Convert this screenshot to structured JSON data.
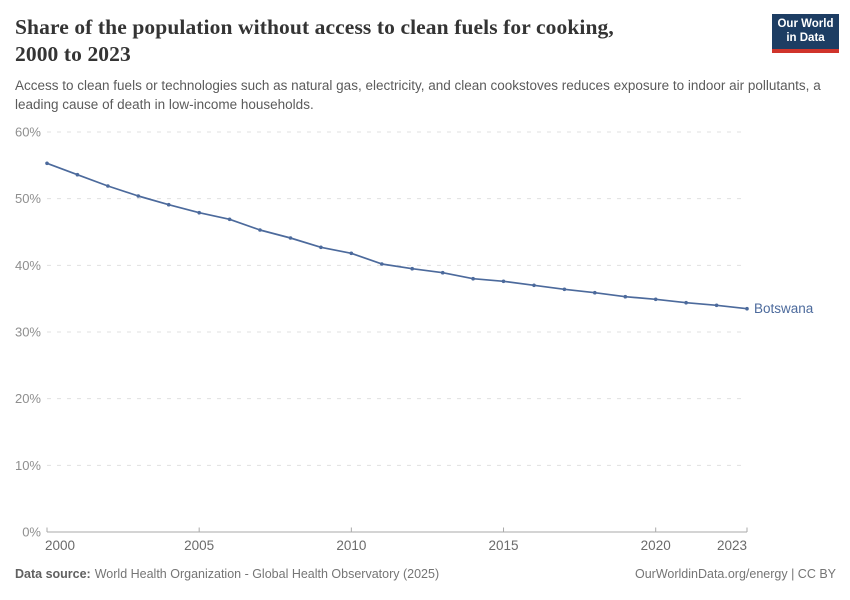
{
  "header": {
    "title_line1": "Share of the population without access to clean fuels for cooking,",
    "title_line2": "2000 to 2023",
    "subtitle": "Access to clean fuels or technologies such as natural gas, electricity, and clean cookstoves reduces exposure to indoor air pollutants, a leading cause of death in low-income households.",
    "logo": {
      "line1": "Our World",
      "line2": "in Data",
      "bg_color": "#1d3d63",
      "accent_color": "#d0342b"
    }
  },
  "chart_data": {
    "type": "line",
    "title": "Share of the population without access to clean fuels for cooking, 2000 to 2023",
    "x": [
      2000,
      2001,
      2002,
      2003,
      2004,
      2005,
      2006,
      2007,
      2008,
      2009,
      2010,
      2011,
      2012,
      2013,
      2014,
      2015,
      2016,
      2017,
      2018,
      2019,
      2020,
      2021,
      2022,
      2023
    ],
    "series": [
      {
        "name": "Botswana",
        "color": "#4c6a9c",
        "values": [
          55.3,
          53.6,
          51.9,
          50.4,
          49.1,
          47.9,
          46.9,
          45.3,
          44.1,
          42.7,
          41.8,
          40.2,
          39.5,
          38.9,
          38.0,
          37.6,
          37.0,
          36.4,
          35.9,
          35.3,
          34.9,
          34.4,
          34.0,
          33.5
        ]
      }
    ],
    "xlabel": "",
    "ylabel": "",
    "ylim": [
      0,
      60
    ],
    "yticks": [
      0,
      10,
      20,
      30,
      40,
      50,
      60
    ],
    "ytick_suffix": "%",
    "xticks": [
      2000,
      2005,
      2010,
      2015,
      2020,
      2023
    ],
    "grid": "horizontal-dashed",
    "legend_position": "end-of-line-label",
    "colors": {
      "gridline": "#e0e0e0",
      "axis_line": "#a9a9a9",
      "y_tick_label": "#8f8f8f",
      "x_tick_label": "#6b6b6b"
    }
  },
  "footer": {
    "source_label": "Data source:",
    "source_text": "World Health Organization - Global Health Observatory (2025)",
    "credit": "OurWorldinData.org/energy | CC BY"
  }
}
